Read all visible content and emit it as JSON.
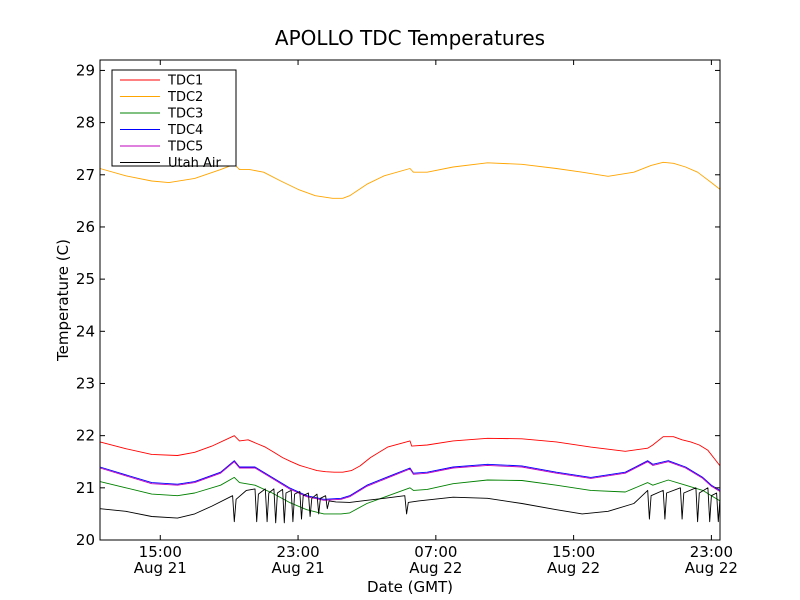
{
  "chart_data": {
    "type": "line",
    "title": "APOLLO TDC Temperatures",
    "xlabel": "Date (GMT)",
    "ylabel": "Temperature (C)",
    "xlim": [
      11.5,
      47.5
    ],
    "ylim": [
      20,
      29.2
    ],
    "grid": false,
    "legend_position": "top-left",
    "x_unit": "hours since 00:00 Aug 21 (GMT)",
    "x_ticks": [
      {
        "value": 15,
        "time": "15:00",
        "date": "Aug 21"
      },
      {
        "value": 23,
        "time": "23:00",
        "date": "Aug 21"
      },
      {
        "value": 31,
        "time": "07:00",
        "date": "Aug 22"
      },
      {
        "value": 39,
        "time": "15:00",
        "date": "Aug 22"
      },
      {
        "value": 47,
        "time": "23:00",
        "date": "Aug 22"
      }
    ],
    "y_ticks": [
      {
        "value": 20,
        "label": "20"
      },
      {
        "value": 21,
        "label": "21"
      },
      {
        "value": 22,
        "label": "22"
      },
      {
        "value": 23,
        "label": "23"
      },
      {
        "value": 24,
        "label": "24"
      },
      {
        "value": 25,
        "label": "25"
      },
      {
        "value": 26,
        "label": "26"
      },
      {
        "value": 27,
        "label": "27"
      },
      {
        "value": 28,
        "label": "28"
      },
      {
        "value": 29,
        "label": "29"
      }
    ],
    "series": [
      {
        "name": "TDC1",
        "color": "#ff0000",
        "x": [
          11.5,
          13,
          14.5,
          16,
          17,
          18,
          19.3,
          19.6,
          20.1,
          20.6,
          21.1,
          21.6,
          22.1,
          22.6,
          23.1,
          23.6,
          24.1,
          24.6,
          25.1,
          25.6,
          26.1,
          26.6,
          27.2,
          28.2,
          29.5,
          29.6,
          30.5,
          32,
          34,
          36,
          38,
          40,
          42,
          43.3,
          43.6,
          44.2,
          44.8,
          45.3,
          45.8,
          46.3,
          46.8,
          47.2,
          47.5
        ],
        "y": [
          21.88,
          21.75,
          21.64,
          21.62,
          21.68,
          21.8,
          22.0,
          21.9,
          21.92,
          21.85,
          21.78,
          21.68,
          21.58,
          21.5,
          21.43,
          21.38,
          21.33,
          21.31,
          21.3,
          21.3,
          21.33,
          21.42,
          21.58,
          21.78,
          21.9,
          21.8,
          21.82,
          21.9,
          21.95,
          21.94,
          21.88,
          21.78,
          21.7,
          21.76,
          21.82,
          21.98,
          21.98,
          21.92,
          21.88,
          21.82,
          21.72,
          21.55,
          21.42
        ]
      },
      {
        "name": "TDC2",
        "color": "#ffa500",
        "x": [
          11.5,
          13,
          14.5,
          15.5,
          17,
          18.5,
          19.3,
          19.6,
          20.2,
          21,
          22,
          23,
          24,
          25,
          25.6,
          26,
          27,
          28,
          29.5,
          29.7,
          30.5,
          32,
          34,
          36,
          38,
          39.5,
          41,
          42.5,
          43.5,
          44.2,
          44.8,
          45.5,
          46.2,
          47,
          47.5
        ],
        "y": [
          27.12,
          26.98,
          26.88,
          26.85,
          26.93,
          27.1,
          27.2,
          27.1,
          27.1,
          27.05,
          26.88,
          26.72,
          26.6,
          26.55,
          26.55,
          26.6,
          26.82,
          26.98,
          27.12,
          27.05,
          27.05,
          27.15,
          27.23,
          27.2,
          27.12,
          27.05,
          26.97,
          27.05,
          27.18,
          27.24,
          27.22,
          27.15,
          27.05,
          26.85,
          26.72
        ]
      },
      {
        "name": "TDC3",
        "color": "#008000",
        "x": [
          11.5,
          13,
          14.5,
          16,
          17,
          18.5,
          19.3,
          19.6,
          20.5,
          21.5,
          22.5,
          23.5,
          24.5,
          25.5,
          26,
          27,
          28.5,
          29.5,
          29.7,
          30.5,
          32,
          34,
          36,
          38,
          40,
          42,
          43.3,
          43.6,
          44.5,
          45.5,
          46.5,
          47,
          47.5
        ],
        "y": [
          21.12,
          21.0,
          20.88,
          20.85,
          20.9,
          21.05,
          21.2,
          21.1,
          21.05,
          20.9,
          20.72,
          20.58,
          20.5,
          20.5,
          20.52,
          20.7,
          20.88,
          21.0,
          20.95,
          20.97,
          21.08,
          21.15,
          21.14,
          21.05,
          20.95,
          20.92,
          21.1,
          21.05,
          21.15,
          21.05,
          20.95,
          20.85,
          20.75
        ]
      },
      {
        "name": "TDC4",
        "color": "#0000ff",
        "x": [
          11.5,
          13,
          14.5,
          16,
          17,
          18.5,
          19.3,
          19.6,
          20.5,
          21.5,
          22.5,
          23.5,
          24.5,
          25.5,
          26,
          27,
          28.5,
          29.5,
          29.7,
          30.5,
          32,
          34,
          36,
          38,
          40,
          42,
          43.3,
          43.6,
          44.5,
          45.5,
          46.5,
          47,
          47.5
        ],
        "y": [
          21.4,
          21.25,
          21.1,
          21.07,
          21.12,
          21.3,
          21.52,
          21.4,
          21.4,
          21.2,
          21.0,
          20.85,
          20.78,
          20.8,
          20.85,
          21.05,
          21.25,
          21.38,
          21.28,
          21.3,
          21.4,
          21.45,
          21.42,
          21.3,
          21.2,
          21.3,
          21.52,
          21.45,
          21.52,
          21.4,
          21.2,
          21.05,
          20.95
        ]
      },
      {
        "name": "TDC5",
        "color": "#bf00bf",
        "x": [
          11.5,
          13,
          14.5,
          16,
          17,
          18.5,
          19.3,
          19.6,
          20.5,
          21.5,
          22.5,
          23.5,
          24.5,
          25.5,
          26,
          27,
          28.5,
          29.5,
          29.7,
          30.5,
          32,
          34,
          36,
          38,
          40,
          42,
          43.3,
          43.6,
          44.5,
          45.5,
          46.5,
          47,
          47.5
        ],
        "y": [
          21.38,
          21.23,
          21.08,
          21.05,
          21.1,
          21.28,
          21.5,
          21.38,
          21.38,
          21.18,
          20.98,
          20.83,
          20.76,
          20.78,
          20.83,
          21.03,
          21.23,
          21.36,
          21.26,
          21.28,
          21.38,
          21.43,
          21.4,
          21.28,
          21.18,
          21.28,
          21.5,
          21.43,
          21.5,
          21.38,
          21.18,
          21.03,
          20.93
        ]
      },
      {
        "name": "Utah Air",
        "color": "#000000",
        "x": [
          11.5,
          13,
          14.5,
          16,
          17,
          18,
          19.2,
          19.3,
          19.4,
          20,
          20.5,
          20.6,
          20.7,
          21.1,
          21.2,
          21.3,
          21.6,
          21.7,
          21.8,
          22.1,
          22.2,
          22.3,
          22.6,
          22.7,
          22.8,
          23.1,
          23.2,
          23.3,
          23.6,
          23.7,
          23.8,
          24.1,
          24.2,
          24.3,
          24.6,
          24.7,
          24.8,
          25.2,
          26,
          27,
          28,
          29.2,
          29.3,
          29.4,
          30,
          32,
          34,
          36,
          38,
          39.5,
          41,
          42.5,
          43.3,
          43.4,
          43.5,
          44.2,
          44.3,
          44.4,
          45.2,
          45.3,
          45.4,
          46.1,
          46.2,
          46.3,
          46.8,
          46.9,
          47,
          47.3,
          47.4,
          47.5
        ],
        "y": [
          20.6,
          20.55,
          20.45,
          20.42,
          20.5,
          20.65,
          20.85,
          20.35,
          20.78,
          20.95,
          20.98,
          20.35,
          20.88,
          20.98,
          20.35,
          20.9,
          20.98,
          20.33,
          20.9,
          20.97,
          20.33,
          20.9,
          20.95,
          20.35,
          20.88,
          20.93,
          20.4,
          20.85,
          20.9,
          20.45,
          20.8,
          20.88,
          20.5,
          20.8,
          20.85,
          20.6,
          20.75,
          20.73,
          20.72,
          20.76,
          20.8,
          20.85,
          20.5,
          20.72,
          20.75,
          20.82,
          20.8,
          20.7,
          20.58,
          20.5,
          20.55,
          20.7,
          20.95,
          20.4,
          20.85,
          20.95,
          20.4,
          20.9,
          21.0,
          20.4,
          20.9,
          21.0,
          20.35,
          20.9,
          21.0,
          20.35,
          20.85,
          20.9,
          20.35,
          20.8
        ]
      }
    ]
  }
}
